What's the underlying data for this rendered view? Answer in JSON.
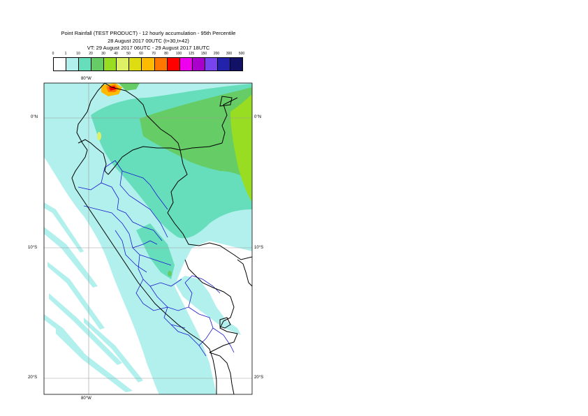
{
  "header": {
    "line1": "Point Rainfall (TEST PRODUCT) - 12 hourly accumulation - 95th Percentile",
    "line2": "28 August 2017 00UTC (t+30,t+42)",
    "line3": "VT: 29 August 2017 06UTC - 29 August 2017 18UTC"
  },
  "legend": {
    "ticks": [
      "0",
      "1",
      "10",
      "20",
      "30",
      "40",
      "50",
      "60",
      "70",
      "80",
      "100",
      "125",
      "150",
      "200",
      "300",
      "500"
    ],
    "colors": [
      "#ffffff",
      "#b2f0ee",
      "#66ddbb",
      "#66cc66",
      "#99dd22",
      "#ddf066",
      "#dddd11",
      "#ffbb00",
      "#ff7700",
      "#ff0000",
      "#ee00ee",
      "#aa00cc",
      "#7744ee",
      "#2222aa",
      "#111166"
    ]
  },
  "map": {
    "lon_label_top": "80°W",
    "lon_label_bottom": "80°W",
    "lat_labels_left": [
      "0°N",
      "10°S",
      "20°S"
    ],
    "lat_labels_right": [
      "0°N",
      "10°S",
      "20°S"
    ]
  }
}
